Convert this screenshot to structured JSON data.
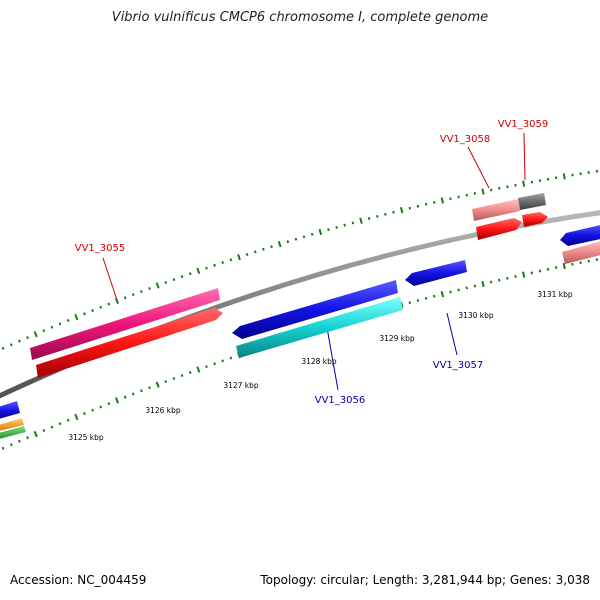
{
  "title": "Vibrio vulnificus CMCP6 chromosome I, complete genome",
  "footer": {
    "accession": "Accession: NC_004459",
    "summary": "Topology: circular; Length: 3,281,944 bp; Genes: 3,038"
  },
  "scale_labels": [
    "3125 kbp",
    "3126 kbp",
    "3127 kbp",
    "3128 kbp",
    "3129 kbp",
    "3130 kbp",
    "3131 kbp"
  ],
  "gene_labels": [
    {
      "text": "VV1_3055",
      "color": "#cc0000"
    },
    {
      "text": "VV1_3058",
      "color": "#cc0000"
    },
    {
      "text": "VV1_3059",
      "color": "#cc0000"
    },
    {
      "text": "VV1_3056",
      "color": "#0000aa"
    },
    {
      "text": "VV1_3057",
      "color": "#0000aa"
    }
  ],
  "colors": {
    "backbone": "#808080",
    "tick": "#1a7a1a",
    "cds_blue": "#1414e6",
    "cds_red": "#ff1414",
    "cds_pink": "#f0147a",
    "cds_salmon": "#f08c8c",
    "cds_cyan": "#14d2d2",
    "cds_gray": "#6e6e6e",
    "cds_orange": "#ff9a00",
    "cds_green": "#32b432"
  }
}
